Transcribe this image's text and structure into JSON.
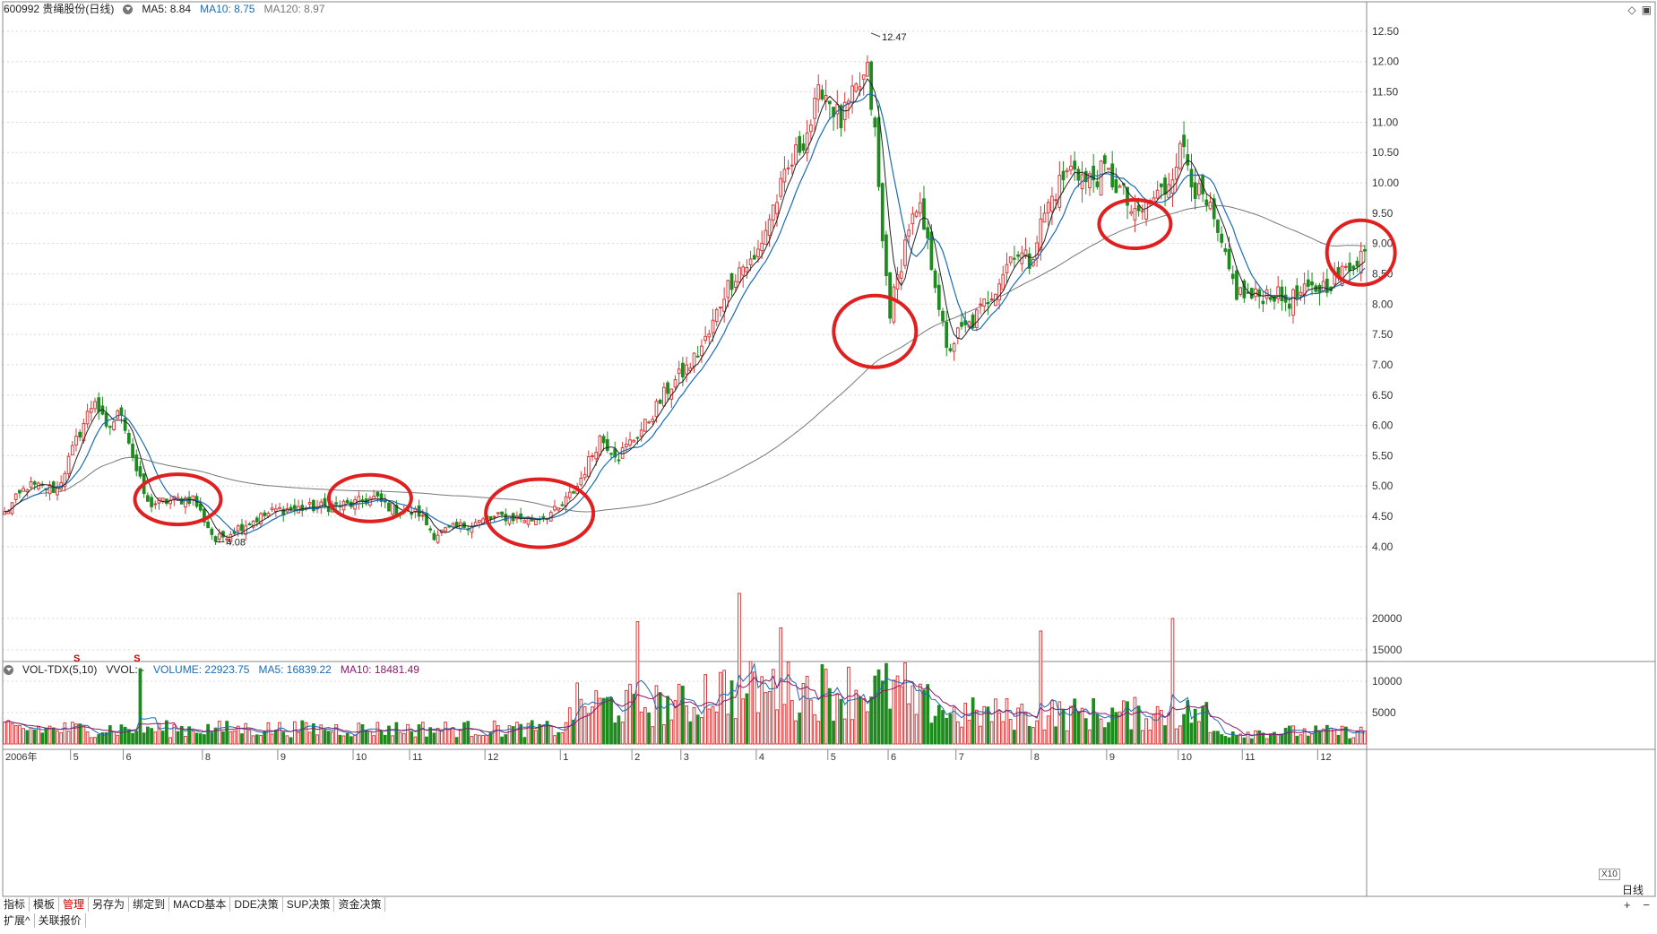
{
  "header": {
    "stock": "600992 贵绳股份(日线)",
    "ma5": "MA5: 8.84",
    "ma10": "MA10: 8.75",
    "ma120": "MA120: 8.97",
    "ma5_color": "#222222",
    "ma10_color": "#1a6bb5",
    "ma120_color": "#777777"
  },
  "vol_header": {
    "name": "VOL-TDX(5,10)",
    "vvol": "VVOL: -",
    "volume": "VOLUME: 22923.75",
    "ma5": "MA5: 16839.22",
    "ma10": "MA10: 18481.49",
    "volume_color": "#1a6bb5",
    "ma5_color": "#1a6bb5",
    "ma10_color": "#8b1a6b"
  },
  "toolbar_icons": [
    "diamond-icon",
    "settings-icon"
  ],
  "tabs": [
    "指标",
    "模板",
    "管理",
    "另存为",
    "绑定到",
    "MACD基本",
    "DDE决策",
    "SUP决策",
    "资金决策"
  ],
  "active_tab": "管理",
  "bottom_tabs": [
    "扩展^",
    "关联报价"
  ],
  "period_label": "日线",
  "xscale_label": "X10",
  "zoom": {
    "plus": "+",
    "minus": "−"
  },
  "colors": {
    "up": "#d63a3a",
    "down": "#1e8b1e",
    "annotation": "#e02020"
  },
  "chart_data": [
    {
      "type": "candlestick",
      "title": "600992 贵绳股份(日线)",
      "price_axis_ticks": [
        "12.50",
        "12.00",
        "11.50",
        "11.00",
        "10.50",
        "10.00",
        "9.50",
        "9.00",
        "8.50",
        "8.00",
        "7.50",
        "7.00",
        "6.50",
        "6.00",
        "5.50",
        "5.00",
        "4.50",
        "4.00"
      ],
      "ylim": [
        3.85,
        12.75
      ],
      "month_labels": [
        "2006年",
        "5",
        "6",
        "8",
        "9",
        "10",
        "11",
        "12",
        "1",
        "2",
        "3",
        "4",
        "5",
        "6",
        "7",
        "8",
        "9",
        "10",
        "11",
        "12"
      ],
      "month_label_bar_index": [
        0,
        18,
        32,
        53,
        73,
        93,
        108,
        128,
        148,
        167,
        180,
        200,
        219,
        235,
        253,
        273,
        293,
        312,
        329,
        349
      ],
      "annotations": [
        {
          "text": "12.47",
          "price": 12.47,
          "bar": 230,
          "kind": "high"
        },
        {
          "text": "4.08",
          "price": 4.08,
          "bar": 56,
          "kind": "low"
        }
      ],
      "markers": [
        {
          "text": "S",
          "bar": 19
        },
        {
          "text": "S",
          "bar": 35
        }
      ],
      "highlight_circles": [
        {
          "bar_center": 46,
          "price": 4.78
        },
        {
          "bar_center": 97,
          "price": 4.8
        },
        {
          "bar_center": 142,
          "price": 4.55
        },
        {
          "bar_center": 231,
          "price": 7.55
        },
        {
          "bar_center": 300,
          "price": 9.32
        },
        {
          "bar_center": 360,
          "price": 8.85
        }
      ],
      "close_anchors": [
        [
          0,
          4.55
        ],
        [
          6,
          5.0
        ],
        [
          14,
          4.95
        ],
        [
          20,
          5.9
        ],
        [
          24,
          6.45
        ],
        [
          27,
          5.9
        ],
        [
          31,
          6.25
        ],
        [
          35,
          5.25
        ],
        [
          38,
          4.7
        ],
        [
          43,
          4.75
        ],
        [
          50,
          4.8
        ],
        [
          56,
          4.1
        ],
        [
          63,
          4.35
        ],
        [
          72,
          4.6
        ],
        [
          82,
          4.65
        ],
        [
          92,
          4.7
        ],
        [
          98,
          4.8
        ],
        [
          104,
          4.6
        ],
        [
          110,
          4.55
        ],
        [
          114,
          4.2
        ],
        [
          122,
          4.35
        ],
        [
          132,
          4.5
        ],
        [
          140,
          4.45
        ],
        [
          147,
          4.6
        ],
        [
          152,
          5.0
        ],
        [
          158,
          5.8
        ],
        [
          163,
          5.5
        ],
        [
          170,
          6.0
        ],
        [
          176,
          6.6
        ],
        [
          182,
          7.0
        ],
        [
          187,
          7.5
        ],
        [
          191,
          8.2
        ],
        [
          195,
          8.6
        ],
        [
          199,
          8.7
        ],
        [
          204,
          9.6
        ],
        [
          208,
          10.2
        ],
        [
          214,
          11.0
        ],
        [
          217,
          11.6
        ],
        [
          222,
          11.0
        ],
        [
          226,
          11.5
        ],
        [
          229,
          11.8
        ],
        [
          231,
          10.8
        ],
        [
          233,
          9.0
        ],
        [
          235,
          7.9
        ],
        [
          237,
          8.4
        ],
        [
          240,
          9.3
        ],
        [
          243,
          9.5
        ],
        [
          247,
          8.4
        ],
        [
          250,
          7.2
        ],
        [
          253,
          7.5
        ],
        [
          257,
          7.7
        ],
        [
          263,
          8.3
        ],
        [
          268,
          8.9
        ],
        [
          272,
          8.7
        ],
        [
          276,
          9.5
        ],
        [
          280,
          10.0
        ],
        [
          284,
          10.3
        ],
        [
          287,
          10.0
        ],
        [
          292,
          10.2
        ],
        [
          297,
          9.8
        ],
        [
          300,
          9.4
        ],
        [
          304,
          9.7
        ],
        [
          308,
          9.9
        ],
        [
          311,
          10.4
        ],
        [
          313,
          10.6
        ],
        [
          316,
          9.9
        ],
        [
          320,
          9.5
        ],
        [
          324,
          8.7
        ],
        [
          327,
          8.2
        ],
        [
          331,
          8.1
        ],
        [
          336,
          8.2
        ],
        [
          340,
          8.05
        ],
        [
          344,
          8.15
        ],
        [
          350,
          8.3
        ],
        [
          355,
          8.5
        ],
        [
          360,
          8.84
        ]
      ]
    },
    {
      "type": "bar",
      "title": "VOL-TDX(5,10)",
      "volume_axis_ticks": [
        "20000",
        "15000",
        "10000",
        "5000"
      ],
      "ylim": [
        0,
        25000
      ],
      "series": [
        {
          "name": "VOLUME",
          "current": 22923.75
        },
        {
          "name": "MA5",
          "current": 16839.22
        },
        {
          "name": "MA10",
          "current": 18481.49
        }
      ],
      "peaks": [
        {
          "bar": 36,
          "value": 12000
        },
        {
          "bar": 168,
          "value": 19500
        },
        {
          "bar": 195,
          "value": 24000
        },
        {
          "bar": 206,
          "value": 18500
        },
        {
          "bar": 275,
          "value": 18000
        },
        {
          "bar": 310,
          "value": 20000
        }
      ]
    }
  ]
}
